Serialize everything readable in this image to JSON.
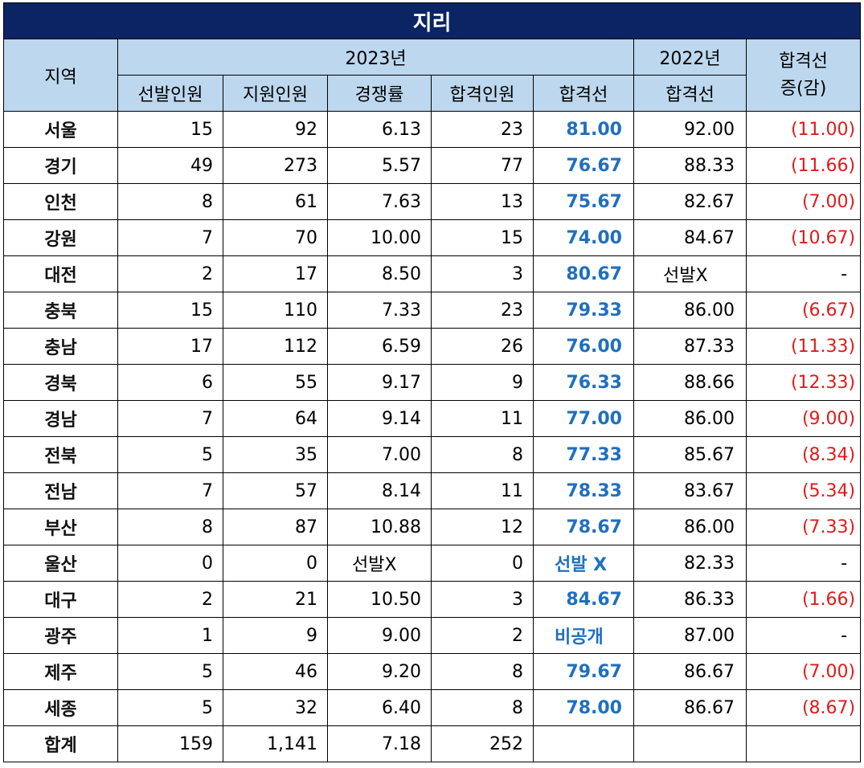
{
  "title": "지리",
  "headers": {
    "region": "지역",
    "year_2023": "2023년",
    "year_2022": "2022년",
    "change": "합격선\n증(감)",
    "sub": [
      "선발인원",
      "지원인원",
      "경쟁률",
      "합격인원",
      "합격선"
    ],
    "sub_2022": "합격선"
  },
  "rows": [
    {
      "region": "서울",
      "select": "15",
      "apply": "92",
      "rate": "6.13",
      "pass": "23",
      "cut": "81.00",
      "cut_prev": "92.00",
      "diff": "(11.00)"
    },
    {
      "region": "경기",
      "select": "49",
      "apply": "273",
      "rate": "5.57",
      "pass": "77",
      "cut": "76.67",
      "cut_prev": "88.33",
      "diff": "(11.66)"
    },
    {
      "region": "인천",
      "select": "8",
      "apply": "61",
      "rate": "7.63",
      "pass": "13",
      "cut": "75.67",
      "cut_prev": "82.67",
      "diff": "(7.00)"
    },
    {
      "region": "강원",
      "select": "7",
      "apply": "70",
      "rate": "10.00",
      "pass": "15",
      "cut": "74.00",
      "cut_prev": "84.67",
      "diff": "(10.67)"
    },
    {
      "region": "대전",
      "select": "2",
      "apply": "17",
      "rate": "8.50",
      "pass": "3",
      "cut": "80.67",
      "cut_prev": "선발X",
      "diff": "-"
    },
    {
      "region": "충북",
      "select": "15",
      "apply": "110",
      "rate": "7.33",
      "pass": "23",
      "cut": "79.33",
      "cut_prev": "86.00",
      "diff": "(6.67)"
    },
    {
      "region": "충남",
      "select": "17",
      "apply": "112",
      "rate": "6.59",
      "pass": "26",
      "cut": "76.00",
      "cut_prev": "87.33",
      "diff": "(11.33)"
    },
    {
      "region": "경북",
      "select": "6",
      "apply": "55",
      "rate": "9.17",
      "pass": "9",
      "cut": "76.33",
      "cut_prev": "88.66",
      "diff": "(12.33)"
    },
    {
      "region": "경남",
      "select": "7",
      "apply": "64",
      "rate": "9.14",
      "pass": "11",
      "cut": "77.00",
      "cut_prev": "86.00",
      "diff": "(9.00)"
    },
    {
      "region": "전북",
      "select": "5",
      "apply": "35",
      "rate": "7.00",
      "pass": "8",
      "cut": "77.33",
      "cut_prev": "85.67",
      "diff": "(8.34)"
    },
    {
      "region": "전남",
      "select": "7",
      "apply": "57",
      "rate": "8.14",
      "pass": "11",
      "cut": "78.33",
      "cut_prev": "83.67",
      "diff": "(5.34)"
    },
    {
      "region": "부산",
      "select": "8",
      "apply": "87",
      "rate": "10.88",
      "pass": "12",
      "cut": "78.67",
      "cut_prev": "86.00",
      "diff": "(7.33)"
    },
    {
      "region": "울산",
      "select": "0",
      "apply": "0",
      "rate": "선발X",
      "pass": "0",
      "cut": "선발 X",
      "cut_prev": "82.33",
      "diff": "-"
    },
    {
      "region": "대구",
      "select": "2",
      "apply": "21",
      "rate": "10.50",
      "pass": "3",
      "cut": "84.67",
      "cut_prev": "86.33",
      "diff": "(1.66)"
    },
    {
      "region": "광주",
      "select": "1",
      "apply": "9",
      "rate": "9.00",
      "pass": "2",
      "cut": "비공개",
      "cut_prev": "87.00",
      "diff": "-"
    },
    {
      "region": "제주",
      "select": "5",
      "apply": "46",
      "rate": "9.20",
      "pass": "8",
      "cut": "79.67",
      "cut_prev": "86.67",
      "diff": "(7.00)"
    },
    {
      "region": "세종",
      "select": "5",
      "apply": "32",
      "rate": "6.40",
      "pass": "8",
      "cut": "78.00",
      "cut_prev": "86.67",
      "diff": "(8.67)"
    }
  ],
  "total": {
    "region": "합계",
    "select": "159",
    "apply": "1,141",
    "rate": "7.18",
    "pass": "252"
  },
  "colors": {
    "title_bg": "#0b2463",
    "header_bg": "#bdd7ee",
    "cut_blue": "#1f6fbf",
    "diff_red": "#e21a1a"
  }
}
